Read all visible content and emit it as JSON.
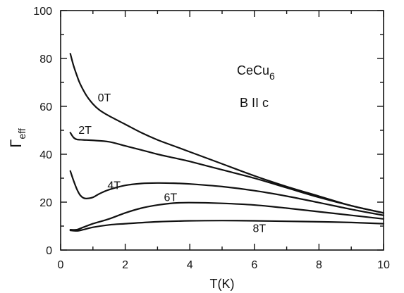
{
  "chart_data": {
    "type": "line",
    "title": "",
    "xlabel": "T(K)",
    "ylabel": {
      "main": "Γ",
      "sub": "eff"
    },
    "xlim": [
      0,
      10
    ],
    "ylim": [
      0,
      100
    ],
    "xticks": [
      0,
      2,
      4,
      6,
      8,
      10
    ],
    "yticks": [
      0,
      20,
      40,
      60,
      80,
      100
    ],
    "grid": false,
    "legend": "none",
    "annotations": {
      "compound": {
        "main": "CeCu",
        "sub": "6"
      },
      "field_direction": "B II c"
    },
    "series": [
      {
        "name": "0T",
        "x": [
          0.3,
          0.4,
          0.5,
          0.6,
          0.8,
          1.0,
          1.2,
          1.5,
          2.0,
          2.5,
          3.0,
          3.5,
          4.0,
          5.0,
          6.0,
          7.0,
          8.0,
          9.0,
          10.0
        ],
        "y": [
          82,
          77,
          73,
          69.5,
          64.5,
          61,
          58.5,
          56,
          52.5,
          49,
          46,
          43.5,
          41,
          36,
          31,
          26.5,
          22.5,
          18.5,
          15.5
        ]
      },
      {
        "name": "2T",
        "x": [
          0.3,
          0.4,
          0.5,
          0.7,
          1.0,
          1.5,
          2.0,
          2.5,
          3.0,
          3.5,
          4.0,
          5.0,
          6.0,
          7.0,
          8.0,
          9.0,
          10.0
        ],
        "y": [
          49,
          47,
          46.2,
          46,
          45.8,
          45.2,
          43.5,
          41.8,
          40,
          38.5,
          37,
          33.5,
          30,
          26,
          22,
          18.5,
          15.5
        ]
      },
      {
        "name": "4T",
        "x": [
          0.3,
          0.4,
          0.5,
          0.6,
          0.7,
          0.8,
          1.0,
          1.2,
          1.5,
          2.0,
          2.5,
          3.0,
          3.5,
          4.0,
          5.0,
          6.0,
          7.0,
          8.0,
          9.0,
          10.0
        ],
        "y": [
          33,
          29,
          25.5,
          23,
          21.8,
          21.5,
          22,
          23.5,
          25.2,
          27,
          27.8,
          28,
          27.9,
          27.6,
          26.5,
          24.8,
          22.5,
          19.8,
          17,
          14.5
        ]
      },
      {
        "name": "6T",
        "x": [
          0.3,
          0.5,
          0.7,
          1.0,
          1.5,
          2.0,
          2.5,
          3.0,
          3.5,
          4.0,
          5.0,
          6.0,
          7.0,
          8.0,
          9.0,
          10.0
        ],
        "y": [
          8.5,
          8.5,
          9.5,
          11,
          13,
          15.5,
          17.5,
          18.8,
          19.6,
          19.8,
          19.5,
          18.8,
          17.5,
          16,
          14.5,
          13
        ]
      },
      {
        "name": "8T",
        "x": [
          0.3,
          0.5,
          0.7,
          1.0,
          1.5,
          2.0,
          3.0,
          4.0,
          5.0,
          6.0,
          7.0,
          8.0,
          9.0,
          10.0
        ],
        "y": [
          8.2,
          8.0,
          8.5,
          9.5,
          10.5,
          11,
          11.8,
          12.2,
          12.3,
          12.2,
          12,
          11.8,
          11.5,
          11
        ]
      }
    ],
    "curve_labels": [
      {
        "series": "0T",
        "x": 1.15,
        "y": 62
      },
      {
        "series": "2T",
        "x": 0.55,
        "y": 48.5
      },
      {
        "series": "4T",
        "x": 1.45,
        "y": 25.5
      },
      {
        "series": "6T",
        "x": 3.2,
        "y": 20.5
      },
      {
        "series": "8T",
        "x": 5.95,
        "y": 7.5
      }
    ]
  }
}
